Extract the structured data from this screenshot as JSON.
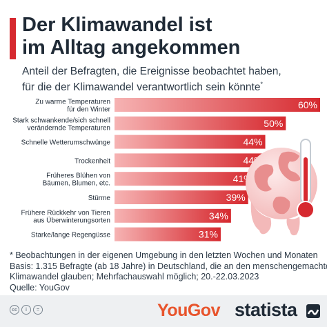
{
  "header": {
    "title_line1": "Der Klimawandel ist",
    "title_line2": "im Alltag angekommen",
    "subtitle_line1": "Anteil der Befragten, die Ereignisse beobachtet haben,",
    "subtitle_line2": "für die der Klimawandel verantwortlich sein könnte",
    "subtitle_mark": "*"
  },
  "chart_data": {
    "type": "bar",
    "orientation": "horizontal",
    "categories": [
      [
        "Zu warme Temperaturen",
        "für den Winter"
      ],
      [
        "Stark schwankende/sich schnell",
        "verändernde Temperaturen"
      ],
      [
        "Schnelle Wetterumschwünge"
      ],
      [
        "Trockenheit"
      ],
      [
        "Früheres Blühen von",
        "Bäumen, Blumen, etc."
      ],
      [
        "Stürme"
      ],
      [
        "Frühere Rückkehr von Tieren",
        "aus Überwinterungsorten"
      ],
      [
        "Starke/lange Regengüsse"
      ]
    ],
    "values": [
      60,
      50,
      44,
      44,
      41,
      39,
      34,
      31
    ],
    "value_labels": [
      "60%",
      "50%",
      "44%",
      "44%",
      "41%",
      "39%",
      "34%",
      "31%"
    ],
    "unit": "%",
    "xlim": [
      0,
      60
    ],
    "grid": false,
    "legend": "none",
    "bar_gradient": [
      "#f6b3b3",
      "#d6292f"
    ]
  },
  "footnote": {
    "line1": "* Beobachtungen in der eigenen Umgebung in den letzten Wochen und Monaten",
    "line2": "Basis: 1.315 Befragte (ab 18 Jahre) in Deutschland, die an den menschengemachten",
    "line3": "Klimawandel glauben; Mehrfachauswahl möglich; 20.-22.03.2023",
    "line4": "Quelle: YouGov"
  },
  "footer": {
    "license_icons": [
      "cc-icon",
      "by-icon",
      "nd-icon"
    ],
    "license_glyphs": [
      "cc",
      "i",
      "="
    ],
    "source_logo": "YouGov",
    "brand_logo": "statista"
  },
  "colors": {
    "accent": "#d6292f",
    "title": "#1f2a36",
    "footer_bg": "#eef0f2",
    "yougov": "#e8542c"
  }
}
